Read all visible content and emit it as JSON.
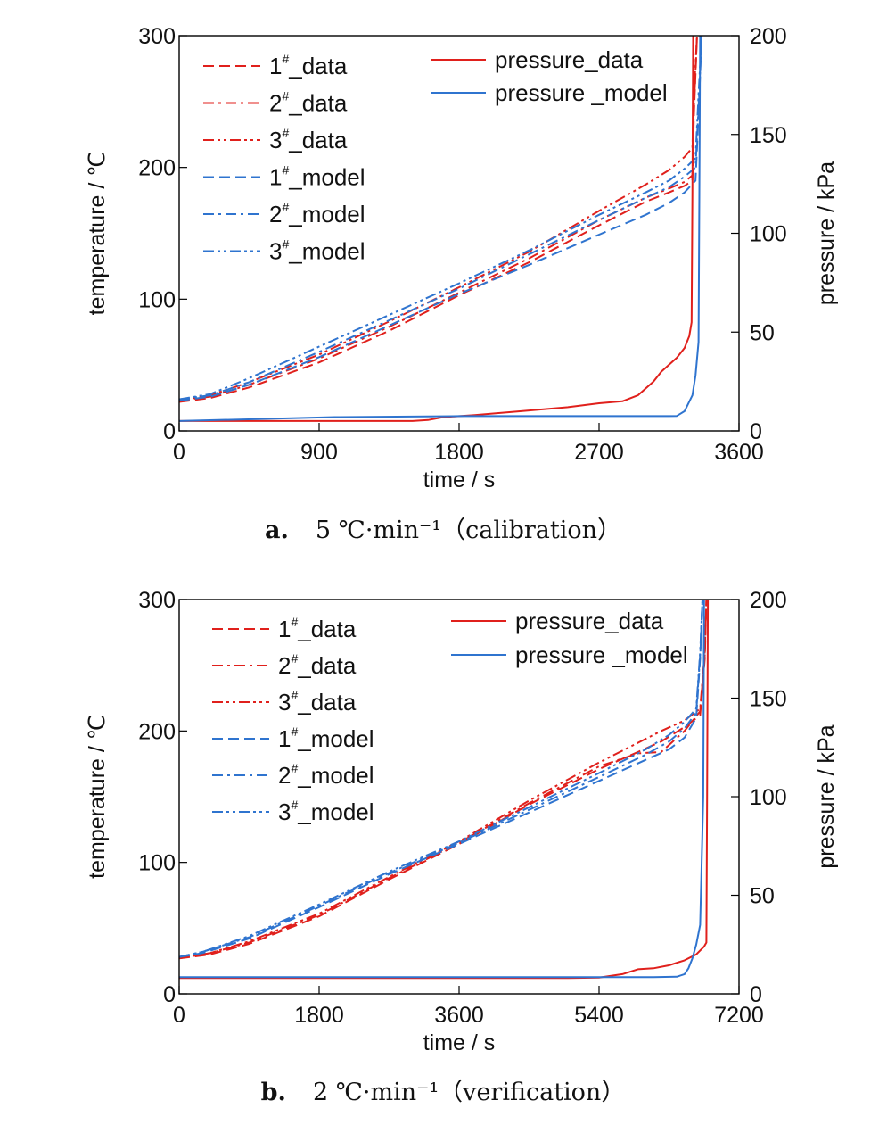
{
  "chart_data": [
    {
      "type": "line",
      "caption_letter": "a.",
      "caption_text": "5 ℃·min⁻¹（calibration）",
      "xlabel": "time / s",
      "ylabel": "temperature / ℃",
      "y2label": "pressure / kPa",
      "xlim": [
        0,
        3600
      ],
      "ylim": [
        0,
        300
      ],
      "y2lim": [
        0,
        200
      ],
      "xticks": [
        "0",
        "900",
        "1800",
        "2700",
        "3600"
      ],
      "yticks": [
        "0",
        "100",
        "200",
        "300"
      ],
      "y2ticks": [
        "0",
        "50",
        "100",
        "150",
        "200"
      ],
      "grid": false,
      "legend_left": [
        {
          "num": "1",
          "sup": "#",
          "suffix": "_data",
          "color": "#e0201c",
          "dash": "dash"
        },
        {
          "num": "2",
          "sup": "#",
          "suffix": "_data",
          "color": "#e0201c",
          "dash": "dashdot"
        },
        {
          "num": "3",
          "sup": "#",
          "suffix": "_data",
          "color": "#e0201c",
          "dash": "dashdotdot"
        },
        {
          "num": "1",
          "sup": "#",
          "suffix": "_model",
          "color": "#2f74cf",
          "dash": "dash"
        },
        {
          "num": "2",
          "sup": "#",
          "suffix": "_model",
          "color": "#2f74cf",
          "dash": "dashdot"
        },
        {
          "num": "3",
          "sup": "#",
          "suffix": "_model",
          "color": "#2f74cf",
          "dash": "dashdotdot"
        }
      ],
      "legend_right": [
        {
          "label": "pressure_data",
          "color": "#e0201c"
        },
        {
          "label": "pressure _model",
          "color": "#2f74cf"
        }
      ],
      "series": [
        {
          "label_key": "1_data",
          "axis": "left",
          "color": "#e0201c",
          "dash": "dash",
          "x": [
            0,
            200,
            450,
            900,
            1350,
            1800,
            2250,
            2700,
            3000,
            3150,
            3250,
            3300,
            3310,
            3330
          ],
          "y": [
            22,
            25,
            33,
            52,
            76,
            103,
            128,
            156,
            174,
            181,
            186,
            190,
            240,
            300
          ]
        },
        {
          "label_key": "2_data",
          "axis": "left",
          "color": "#e0201c",
          "dash": "dashdot",
          "x": [
            0,
            200,
            450,
            900,
            1350,
            1800,
            2250,
            2700,
            3000,
            3150,
            3250,
            3300,
            3310,
            3330
          ],
          "y": [
            23,
            26,
            35,
            55,
            79,
            105,
            131,
            160,
            177,
            184,
            189,
            194,
            245,
            300
          ]
        },
        {
          "label_key": "3_data",
          "axis": "left",
          "color": "#e0201c",
          "dash": "dashdotdot",
          "x": [
            0,
            200,
            450,
            900,
            1350,
            1800,
            2250,
            2700,
            3000,
            3150,
            3250,
            3300,
            3310,
            3330
          ],
          "y": [
            23,
            27,
            37,
            58,
            83,
            109,
            136,
            167,
            187,
            198,
            208,
            215,
            255,
            300
          ]
        },
        {
          "label_key": "1_model",
          "axis": "left",
          "color": "#2f74cf",
          "dash": "dash",
          "x": [
            0,
            200,
            450,
            900,
            1350,
            1800,
            2250,
            2700,
            3000,
            3150,
            3250,
            3320,
            3340,
            3360
          ],
          "y": [
            23,
            26,
            35,
            56,
            80,
            104,
            126,
            149,
            164,
            173,
            181,
            190,
            240,
            300
          ]
        },
        {
          "label_key": "2_model",
          "axis": "left",
          "color": "#2f74cf",
          "dash": "dashdot",
          "x": [
            0,
            200,
            450,
            900,
            1350,
            1800,
            2250,
            2700,
            3000,
            3150,
            3250,
            3320,
            3340,
            3360
          ],
          "y": [
            24,
            27,
            37,
            60,
            84,
            108,
            134,
            160,
            177,
            185,
            193,
            200,
            245,
            300
          ]
        },
        {
          "label_key": "3_model",
          "axis": "left",
          "color": "#2f74cf",
          "dash": "dashdotdot",
          "x": [
            0,
            200,
            450,
            900,
            1350,
            1800,
            2250,
            2700,
            3000,
            3150,
            3250,
            3320,
            3340,
            3360
          ],
          "y": [
            24,
            28,
            40,
            64,
            88,
            112,
            137,
            164,
            181,
            190,
            199,
            207,
            255,
            300
          ]
        },
        {
          "label_key": "pressure_data",
          "axis": "right",
          "color": "#e0201c",
          "dash": "solid",
          "x": [
            0,
            600,
            1000,
            1500,
            1600,
            1700,
            1900,
            2200,
            2500,
            2700,
            2850,
            2950,
            3050,
            3100,
            3200,
            3250,
            3280,
            3295,
            3300,
            3305
          ],
          "y": [
            5,
            5,
            5,
            5,
            5.5,
            7,
            8,
            10,
            12,
            14,
            15,
            18,
            25,
            30,
            37,
            42,
            48,
            55,
            120,
            200
          ]
        },
        {
          "label_key": "pressure_model",
          "axis": "right",
          "color": "#2f74cf",
          "dash": "solid",
          "x": [
            0,
            500,
            1000,
            1800,
            2500,
            3000,
            3150,
            3200,
            3250,
            3300,
            3320,
            3340,
            3345,
            3350
          ],
          "y": [
            5,
            6,
            7,
            7.5,
            7.5,
            7.5,
            7.5,
            7.6,
            10,
            18,
            28,
            45,
            120,
            200
          ]
        }
      ]
    },
    {
      "type": "line",
      "caption_letter": "b.",
      "caption_text": "2 ℃·min⁻¹（verification）",
      "xlabel": "time / s",
      "ylabel": "temperature / ℃",
      "y2label": "pressure / kPa",
      "xlim": [
        0,
        7200
      ],
      "ylim": [
        0,
        300
      ],
      "y2lim": [
        0,
        200
      ],
      "xticks": [
        "0",
        "1800",
        "3600",
        "5400",
        "7200"
      ],
      "yticks": [
        "0",
        "100",
        "200",
        "300"
      ],
      "y2ticks": [
        "0",
        "50",
        "100",
        "150",
        "200"
      ],
      "grid": false,
      "legend_left": [
        {
          "num": "1",
          "sup": "#",
          "suffix": "_data",
          "color": "#e0201c",
          "dash": "dash"
        },
        {
          "num": "2",
          "sup": "#",
          "suffix": "_data",
          "color": "#e0201c",
          "dash": "dashdot"
        },
        {
          "num": "3",
          "sup": "#",
          "suffix": "_data",
          "color": "#e0201c",
          "dash": "dashdotdot"
        },
        {
          "num": "1",
          "sup": "#",
          "suffix": "_model",
          "color": "#2f74cf",
          "dash": "dash"
        },
        {
          "num": "2",
          "sup": "#",
          "suffix": "_model",
          "color": "#2f74cf",
          "dash": "dashdot"
        },
        {
          "num": "3",
          "sup": "#",
          "suffix": "_model",
          "color": "#2f74cf",
          "dash": "dashdotdot"
        }
      ],
      "legend_right": [
        {
          "label": "pressure_data",
          "color": "#e0201c"
        },
        {
          "label": "pressure _model",
          "color": "#2f74cf"
        }
      ],
      "series": [
        {
          "label_key": "1_data",
          "axis": "left",
          "color": "#e0201c",
          "dash": "dash",
          "x": [
            0,
            400,
            900,
            1800,
            2700,
            3600,
            4500,
            5400,
            5900,
            6200,
            6500,
            6700,
            6760,
            6780
          ],
          "y": [
            27,
            30,
            38,
            59,
            87,
            114,
            144,
            171,
            184,
            192,
            203,
            212,
            255,
            300
          ]
        },
        {
          "label_key": "2_data",
          "axis": "left",
          "color": "#e0201c",
          "dash": "dashdot",
          "x": [
            0,
            400,
            900,
            1800,
            2700,
            3600,
            4500,
            5400,
            5900,
            6200,
            6500,
            6700,
            6760,
            6780
          ],
          "y": [
            27,
            31,
            39,
            60,
            88,
            115,
            145,
            173,
            183,
            184,
            200,
            215,
            258,
            300
          ]
        },
        {
          "label_key": "3_data",
          "axis": "left",
          "color": "#e0201c",
          "dash": "dashdotdot",
          "x": [
            0,
            400,
            900,
            1800,
            2700,
            3600,
            4500,
            5400,
            5900,
            6200,
            6500,
            6700,
            6760,
            6780
          ],
          "y": [
            27,
            31,
            40,
            61,
            89,
            116,
            147,
            176,
            191,
            200,
            208,
            217,
            260,
            300
          ]
        },
        {
          "label_key": "1_model",
          "axis": "left",
          "color": "#2f74cf",
          "dash": "dash",
          "x": [
            0,
            300,
            900,
            1800,
            2700,
            3600,
            4500,
            5400,
            6000,
            6300,
            6500,
            6650,
            6700,
            6730
          ],
          "y": [
            28,
            31,
            42,
            66,
            91,
            114,
            138,
            162,
            178,
            186,
            195,
            210,
            255,
            300
          ]
        },
        {
          "label_key": "2_model",
          "axis": "left",
          "color": "#2f74cf",
          "dash": "dashdot",
          "x": [
            0,
            300,
            900,
            1800,
            2700,
            3600,
            4500,
            5400,
            6000,
            6300,
            6500,
            6650,
            6700,
            6730
          ],
          "y": [
            28,
            32,
            43,
            67,
            92,
            115,
            140,
            165,
            182,
            192,
            202,
            214,
            258,
            300
          ]
        },
        {
          "label_key": "3_model",
          "axis": "left",
          "color": "#2f74cf",
          "dash": "dashdotdot",
          "x": [
            0,
            300,
            900,
            1800,
            2700,
            3600,
            4500,
            5400,
            6000,
            6300,
            6500,
            6650,
            6700,
            6730
          ],
          "y": [
            28,
            32,
            44,
            68,
            93,
            116,
            142,
            168,
            186,
            197,
            207,
            217,
            260,
            300
          ]
        },
        {
          "label_key": "pressure_data",
          "axis": "right",
          "color": "#e0201c",
          "dash": "solid",
          "x": [
            0,
            3000,
            5000,
            5400,
            5700,
            5900,
            6100,
            6300,
            6500,
            6650,
            6750,
            6780,
            6790,
            6800
          ],
          "y": [
            8,
            8,
            8,
            8.3,
            10,
            12.5,
            13,
            14.5,
            17,
            20,
            24,
            26,
            100,
            200
          ]
        },
        {
          "label_key": "pressure_model",
          "axis": "right",
          "color": "#2f74cf",
          "dash": "solid",
          "x": [
            0,
            3000,
            5400,
            6100,
            6400,
            6500,
            6550,
            6600,
            6650,
            6700,
            6740,
            6750
          ],
          "y": [
            8.5,
            8.5,
            8.5,
            8.5,
            8.7,
            10,
            13,
            18,
            25,
            35,
            100,
            200
          ]
        }
      ]
    }
  ]
}
